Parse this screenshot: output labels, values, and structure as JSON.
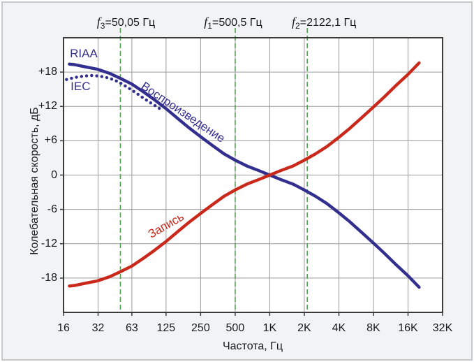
{
  "chart_data": {
    "type": "line",
    "title": "",
    "x_axis": {
      "label": "Частота, Гц",
      "scale": "log",
      "min_hz": 16,
      "max_hz": 32000,
      "ticks": [
        {
          "label": "16",
          "hz": 16
        },
        {
          "label": "32",
          "hz": 32
        },
        {
          "label": "63",
          "hz": 63
        },
        {
          "label": "125",
          "hz": 125
        },
        {
          "label": "250",
          "hz": 250
        },
        {
          "label": "500",
          "hz": 500
        },
        {
          "label": "1K",
          "hz": 1000
        },
        {
          "label": "2K",
          "hz": 2000
        },
        {
          "label": "4K",
          "hz": 4000
        },
        {
          "label": "8K",
          "hz": 8000
        },
        {
          "label": "16K",
          "hz": 16000
        },
        {
          "label": "32K",
          "hz": 32000
        }
      ]
    },
    "y_axis": {
      "label": "Колебательная скорость, дБ",
      "min_db": -24,
      "max_db": 24,
      "ticks": [
        {
          "label": "+18",
          "db": 18
        },
        {
          "label": "+12",
          "db": 12
        },
        {
          "label": "+6",
          "db": 6
        },
        {
          "label": "0",
          "db": 0
        },
        {
          "label": "-6",
          "db": -6
        },
        {
          "label": "-12",
          "db": -12
        },
        {
          "label": "-18",
          "db": -18
        }
      ]
    },
    "freq_markers": [
      {
        "sym": "f",
        "sub": "3",
        "text": "=50,05 Гц",
        "hz": 50.05
      },
      {
        "sym": "f",
        "sub": "1",
        "text": "=500,5 Гц",
        "hz": 500.5
      },
      {
        "sym": "f",
        "sub": "2",
        "text": "=2122,1 Гц",
        "hz": 2122.1
      }
    ],
    "series": [
      {
        "name": "IEC",
        "color": "#332f8f",
        "line": "dotted",
        "points": [
          [
            17,
            16.7
          ],
          [
            20,
            17.05
          ],
          [
            24,
            17.3
          ],
          [
            28,
            17.4
          ],
          [
            33,
            17.3
          ],
          [
            40,
            16.95
          ],
          [
            48,
            16.3
          ],
          [
            57,
            15.4
          ],
          [
            68,
            14.4
          ],
          [
            80,
            13.4
          ],
          [
            92,
            12.6
          ],
          [
            105,
            11.9
          ],
          [
            118,
            11.2
          ]
        ]
      },
      {
        "name": "Воспроизведение (RIAA)",
        "color": "#332f8f",
        "line": "solid",
        "points": [
          [
            18,
            19.4
          ],
          [
            20,
            19.3
          ],
          [
            25,
            18.9
          ],
          [
            31.5,
            18.5
          ],
          [
            40,
            17.8
          ],
          [
            50,
            16.9
          ],
          [
            63,
            15.9
          ],
          [
            80,
            14.5
          ],
          [
            100,
            13.1
          ],
          [
            125,
            11.6
          ],
          [
            160,
            9.8
          ],
          [
            200,
            8.2
          ],
          [
            250,
            6.7
          ],
          [
            315,
            5.2
          ],
          [
            400,
            3.7
          ],
          [
            500,
            2.6
          ],
          [
            630,
            1.6
          ],
          [
            800,
            0.8
          ],
          [
            1000,
            0
          ],
          [
            1250,
            -0.8
          ],
          [
            1600,
            -1.6
          ],
          [
            2000,
            -2.6
          ],
          [
            2500,
            -3.7
          ],
          [
            3150,
            -5.0
          ],
          [
            4000,
            -6.6
          ],
          [
            5000,
            -8.2
          ],
          [
            6300,
            -10.0
          ],
          [
            8000,
            -11.9
          ],
          [
            10000,
            -13.7
          ],
          [
            12500,
            -15.6
          ],
          [
            16000,
            -17.6
          ],
          [
            20000,
            -19.6
          ]
        ]
      },
      {
        "name": "Запись",
        "color": "#c9281a",
        "line": "solid",
        "points": [
          [
            18,
            -19.4
          ],
          [
            20,
            -19.3
          ],
          [
            25,
            -18.9
          ],
          [
            31.5,
            -18.5
          ],
          [
            40,
            -17.8
          ],
          [
            50,
            -16.9
          ],
          [
            63,
            -15.9
          ],
          [
            80,
            -14.5
          ],
          [
            100,
            -13.1
          ],
          [
            125,
            -11.6
          ],
          [
            160,
            -9.8
          ],
          [
            200,
            -8.2
          ],
          [
            250,
            -6.7
          ],
          [
            315,
            -5.2
          ],
          [
            400,
            -3.7
          ],
          [
            500,
            -2.6
          ],
          [
            630,
            -1.6
          ],
          [
            800,
            -0.8
          ],
          [
            1000,
            0
          ],
          [
            1250,
            0.8
          ],
          [
            1600,
            1.6
          ],
          [
            2000,
            2.6
          ],
          [
            2500,
            3.7
          ],
          [
            3150,
            5.0
          ],
          [
            4000,
            6.6
          ],
          [
            5000,
            8.2
          ],
          [
            6300,
            10.0
          ],
          [
            8000,
            11.9
          ],
          [
            10000,
            13.7
          ],
          [
            12500,
            15.6
          ],
          [
            16000,
            17.6
          ],
          [
            20000,
            19.6
          ]
        ]
      }
    ],
    "curve_labels": [
      {
        "text": "RIAA",
        "color": "#332f8f",
        "hz": 24,
        "db": 21.2,
        "angle": 0
      },
      {
        "text": "IEC",
        "color": "#332f8f",
        "hz": 22.5,
        "db": 15.4,
        "angle": 0
      },
      {
        "text": "Воспроизведение",
        "color": "#332f8f",
        "hz": 175,
        "db": 10.9,
        "angle": 34
      },
      {
        "text": "Запись",
        "color": "#c9281a",
        "hz": 126,
        "db": -8.9,
        "angle": -30
      }
    ],
    "grid": true,
    "legend_position": "none",
    "colors": {
      "grid": "#999999",
      "border": "#3b3b3b",
      "marker_line": "#55a055",
      "plot_bg": "#ffffff",
      "panel_bg": "#f2f3f5",
      "text": "#1a1a1a"
    }
  }
}
